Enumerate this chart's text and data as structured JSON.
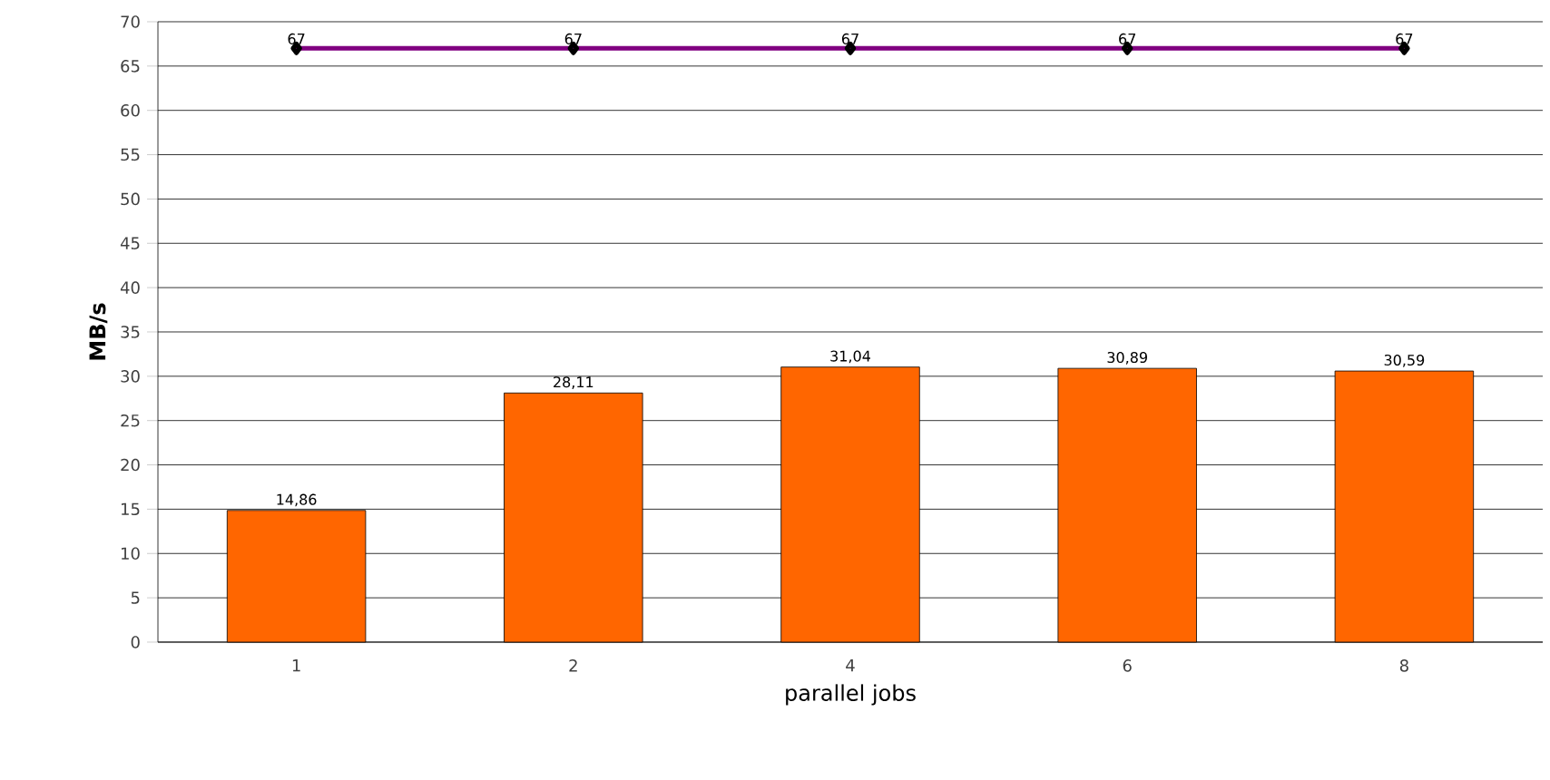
{
  "chart_data": {
    "type": "bar",
    "xlabel": "parallel jobs",
    "ylabel": "MB/s",
    "categories": [
      "1",
      "2",
      "4",
      "6",
      "8"
    ],
    "series": [
      {
        "color": "#ff6600",
        "values": [
          14.86,
          28.11,
          31.04,
          30.89,
          30.59
        ],
        "value_labels": [
          "14,86",
          "28,11",
          "31,04",
          "30,89",
          "30,59"
        ]
      },
      {
        "type": "line",
        "color": "#800080",
        "marker": "diamond",
        "values": [
          67,
          67,
          67,
          67,
          67
        ],
        "value_labels": [
          "67",
          "67",
          "67",
          "67",
          "67"
        ]
      }
    ],
    "ylim": [
      0,
      70
    ],
    "yticks": [
      0,
      5,
      10,
      15,
      20,
      25,
      30,
      35,
      40,
      45,
      50,
      55,
      60,
      65,
      70
    ],
    "grid": "y"
  }
}
